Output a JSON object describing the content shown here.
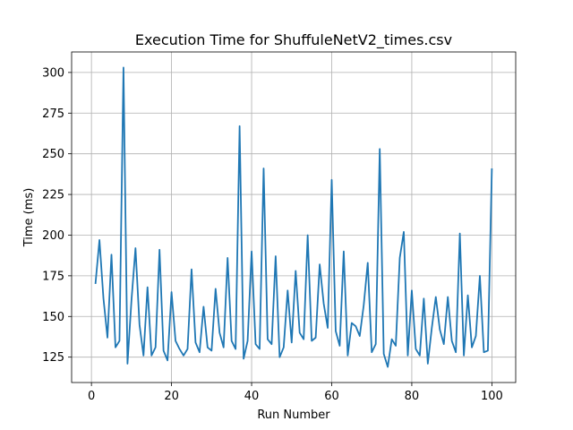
{
  "chart_data": {
    "type": "line",
    "title": "Execution Time for ShuffuleNetV2_times.csv",
    "xlabel": "Run Number",
    "ylabel": "Time (ms)",
    "xlim": [
      -4.95,
      105.95
    ],
    "ylim": [
      109.4,
      312.6
    ],
    "xticks": [
      0,
      20,
      40,
      60,
      80,
      100
    ],
    "yticks": [
      125,
      150,
      175,
      200,
      225,
      250,
      275,
      300
    ],
    "grid": true,
    "line_color": "#1f77b4",
    "x": [
      1,
      2,
      3,
      4,
      5,
      6,
      7,
      8,
      9,
      10,
      11,
      12,
      13,
      14,
      15,
      16,
      17,
      18,
      19,
      20,
      21,
      22,
      23,
      24,
      25,
      26,
      27,
      28,
      29,
      30,
      31,
      32,
      33,
      34,
      35,
      36,
      37,
      38,
      39,
      40,
      41,
      42,
      43,
      44,
      45,
      46,
      47,
      48,
      49,
      50,
      51,
      52,
      53,
      54,
      55,
      56,
      57,
      58,
      59,
      60,
      61,
      62,
      63,
      64,
      65,
      66,
      67,
      68,
      69,
      70,
      71,
      72,
      73,
      74,
      75,
      76,
      77,
      78,
      79,
      80,
      81,
      82,
      83,
      84,
      85,
      86,
      87,
      88,
      89,
      90,
      91,
      92,
      93,
      94,
      95,
      96,
      97,
      98,
      99,
      100
    ],
    "values": [
      170,
      197,
      161,
      137,
      188,
      131,
      135,
      303,
      121,
      160,
      192,
      145,
      126,
      168,
      126,
      131,
      191,
      129,
      123,
      165,
      135,
      130,
      126,
      130,
      179,
      134,
      128,
      156,
      131,
      129,
      167,
      140,
      131,
      186,
      135,
      130,
      267,
      124,
      135,
      190,
      133,
      130,
      241,
      136,
      133,
      187,
      125,
      131,
      166,
      134,
      178,
      140,
      136,
      200,
      135,
      137,
      182,
      158,
      143,
      234,
      141,
      132,
      190,
      126,
      146,
      144,
      138,
      157,
      183,
      128,
      133,
      253,
      127,
      119,
      136,
      132,
      186,
      202,
      126,
      166,
      130,
      126,
      161,
      121,
      143,
      162,
      142,
      133,
      162,
      135,
      128,
      201,
      126,
      163,
      131,
      138,
      175,
      128,
      129,
      241
    ]
  }
}
